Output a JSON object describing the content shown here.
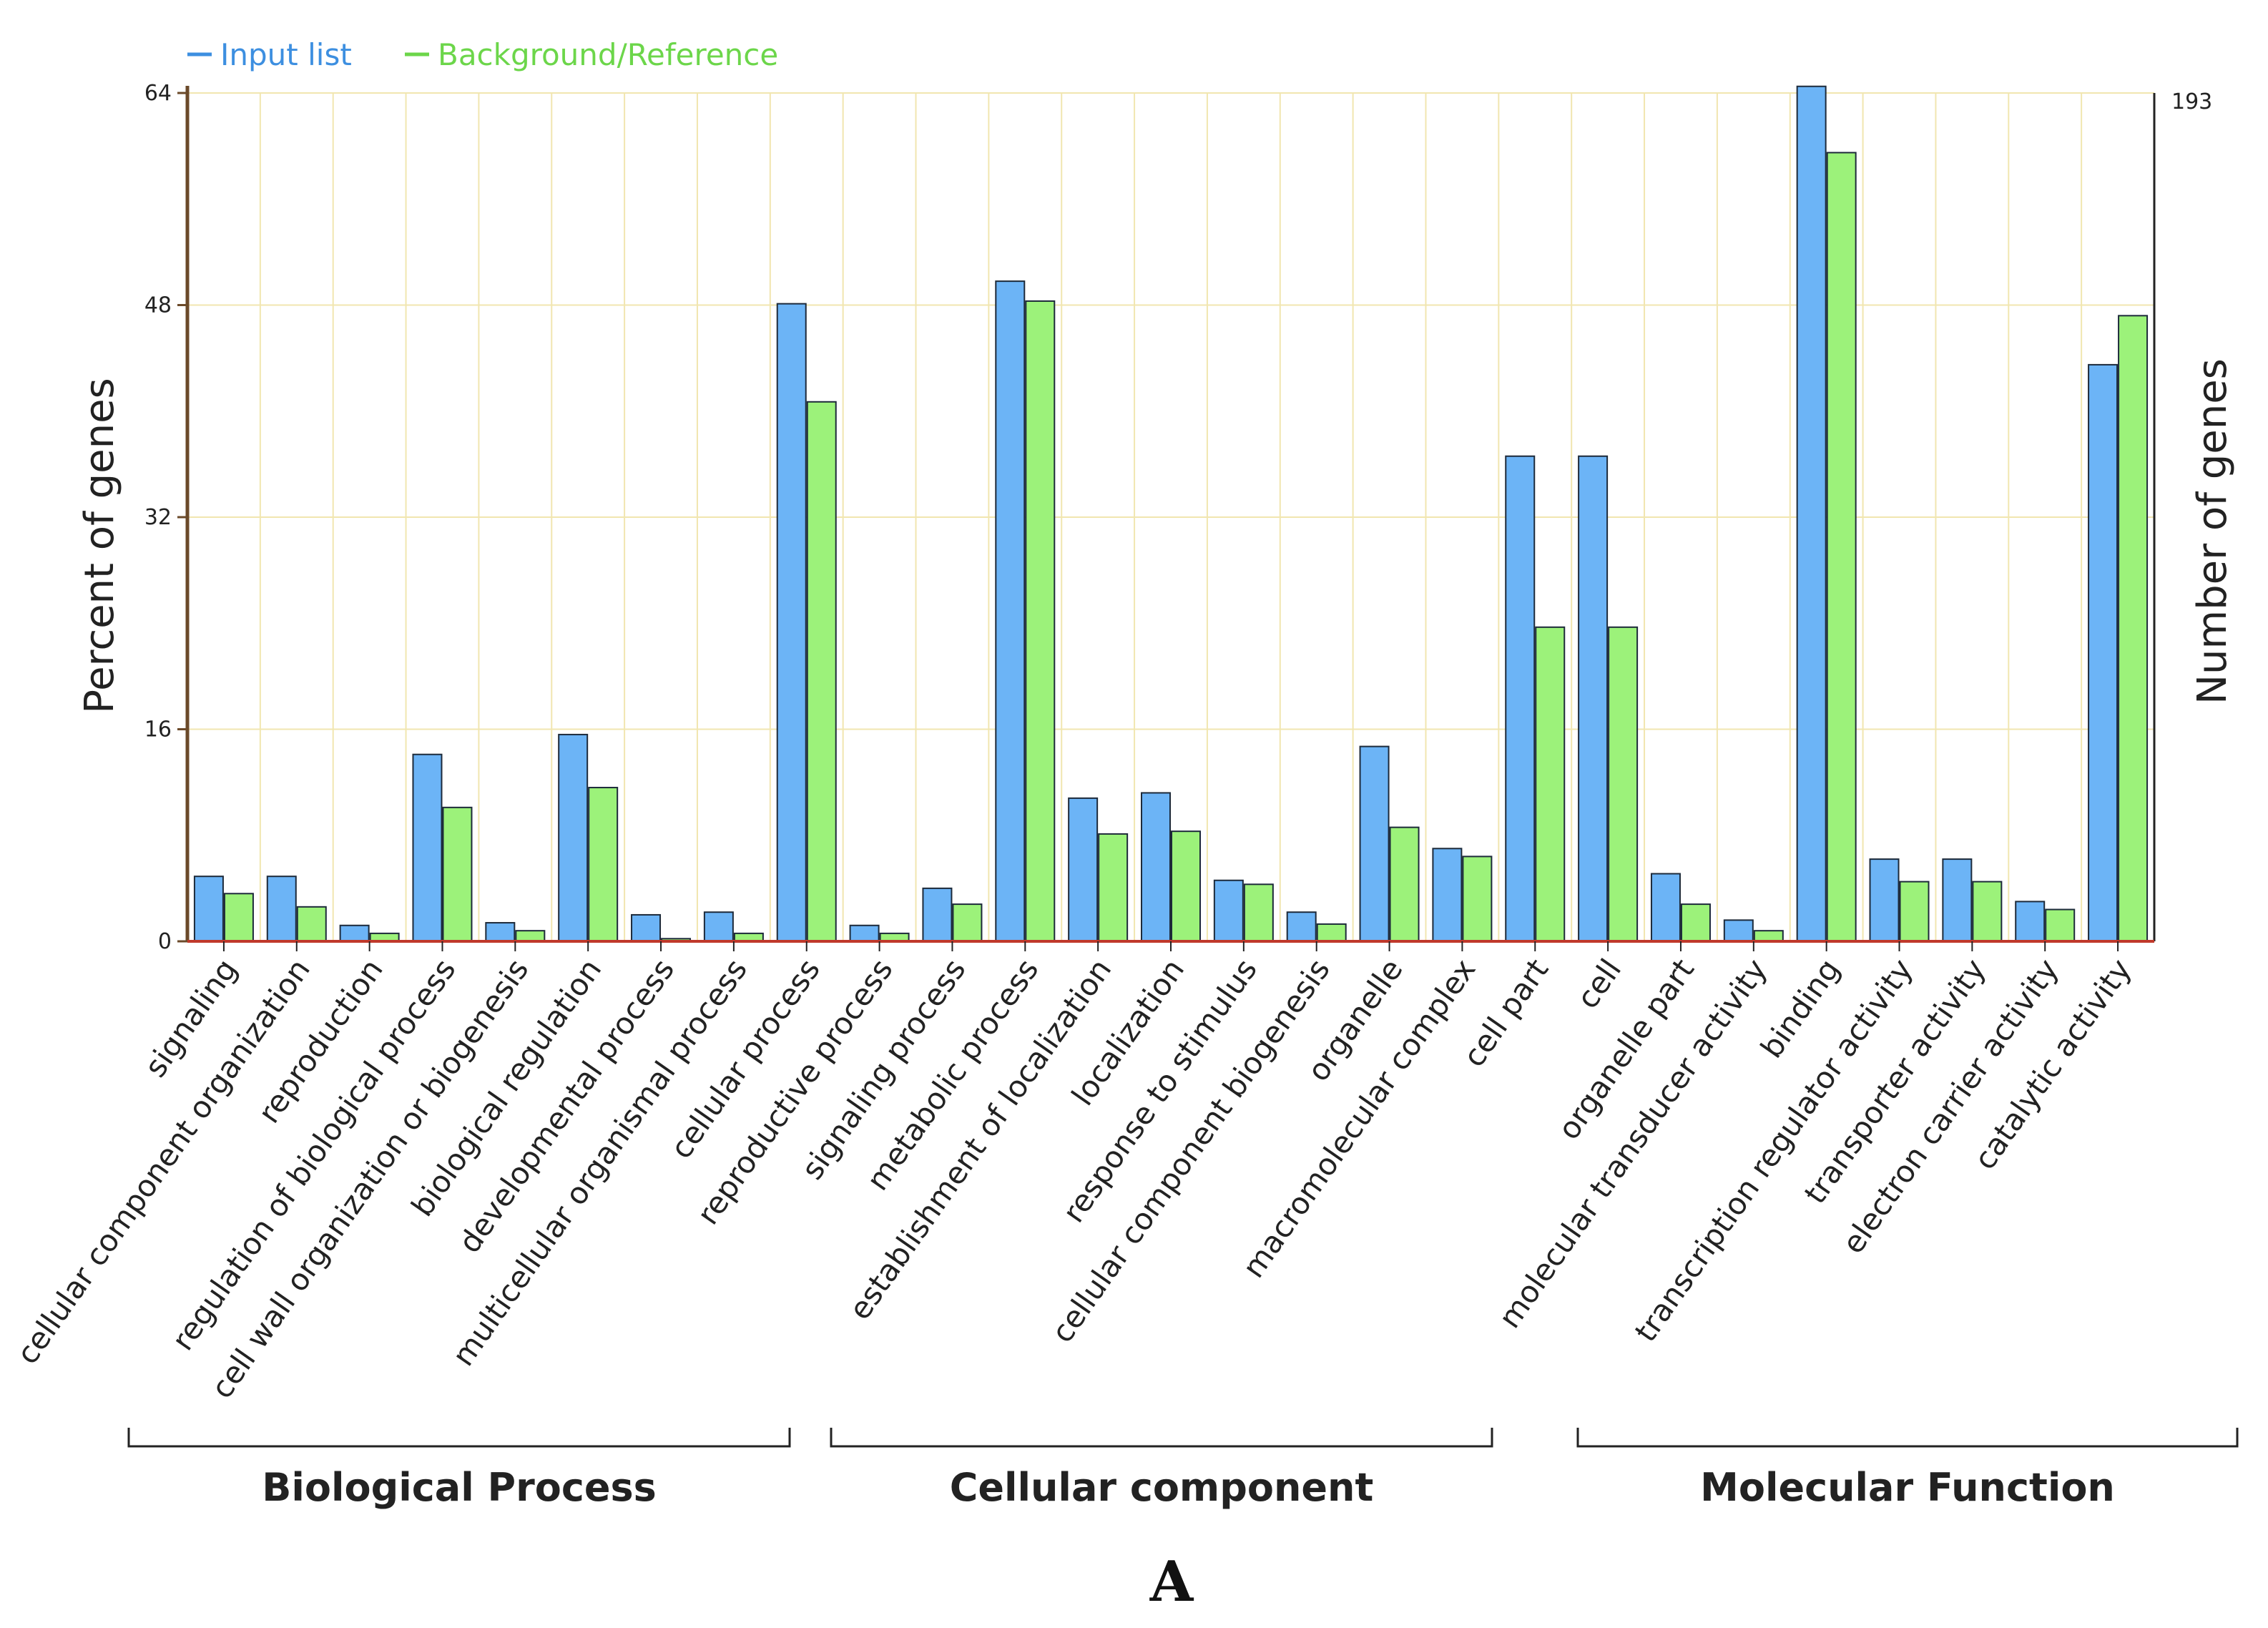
{
  "chart_data": {
    "type": "bar",
    "title": "",
    "xlabel": "",
    "ylabel": "Percent of genes",
    "y2label": "Number of genes",
    "y2_top_label": "193",
    "ylim": [
      0,
      64
    ],
    "yticks": [
      0,
      16,
      32,
      48,
      64
    ],
    "grid": true,
    "legend_position": "top-left",
    "categories": [
      "signaling",
      "cellular component organization",
      "reproduction",
      "regulation of biological process",
      "cell wall organization or biogenesis",
      "biological regulation",
      "developmental process",
      "multicellular organismal process",
      "cellular process",
      "reproductive process",
      "signaling process",
      "metabolic process",
      "establishment of localization",
      "localization",
      "response to stimulus",
      "cellular component biogenesis",
      "organelle",
      "macromolecular complex",
      "cell part",
      "cell",
      "organelle part",
      "molecular transducer activity",
      "binding",
      "transcription regulator activity",
      "transporter activity",
      "electron carrier activity",
      "catalytic activity"
    ],
    "series": [
      {
        "name": "Input list",
        "color": "#6cb4f6",
        "values": [
          4.9,
          4.9,
          1.2,
          14.1,
          1.4,
          15.6,
          2.0,
          2.2,
          48.1,
          1.2,
          4.0,
          49.8,
          10.8,
          11.2,
          4.6,
          2.2,
          14.7,
          7.0,
          36.6,
          36.6,
          5.1,
          1.6,
          64.5,
          6.2,
          6.2,
          3.0,
          43.5
        ]
      },
      {
        "name": "Background/Reference",
        "color": "#9cf27a",
        "values": [
          3.6,
          2.6,
          0.6,
          10.1,
          0.8,
          11.6,
          0.2,
          0.6,
          40.7,
          0.6,
          2.8,
          48.3,
          8.1,
          8.3,
          4.3,
          1.3,
          8.6,
          6.4,
          23.7,
          23.7,
          2.8,
          0.8,
          59.5,
          4.5,
          4.5,
          2.4,
          47.2
        ]
      }
    ],
    "groups": [
      {
        "label": "Biological Process",
        "first": 0,
        "last": 8
      },
      {
        "label": "Cellular component",
        "first": 9,
        "last": 17
      },
      {
        "label": "Molecular Function",
        "first": 18,
        "last": 26
      }
    ],
    "panel_label": "A"
  }
}
